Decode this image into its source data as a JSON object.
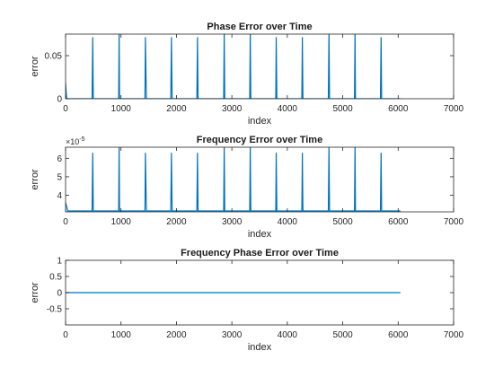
{
  "chart_data": [
    {
      "type": "line",
      "title": "Phase Error over Time",
      "xlabel": "index",
      "ylabel": "error",
      "xlim": [
        0,
        7000
      ],
      "ylim": [
        0,
        0.075
      ],
      "xticks": [
        0,
        1000,
        2000,
        3000,
        4000,
        5000,
        6000,
        7000
      ],
      "xtick_labels": [
        "0",
        "1000",
        "2000",
        "3000",
        "4000",
        "5000",
        "6000",
        "7000"
      ],
      "yticks": [
        0,
        0.05
      ],
      "ytick_labels": [
        "0",
        "0.05"
      ],
      "exponent_label": "",
      "line_color": "#0072bd",
      "series": [
        {
          "x": [
            0,
            20,
            460,
            478,
            490,
            500,
            520,
            940,
            958,
            966,
            974,
            990,
            1410,
            1432,
            1440,
            1458,
            1470,
            1880,
            1898,
            1910,
            1922,
            1940,
            2350,
            2368,
            2380,
            2390,
            2410,
            2830,
            2852,
            2862,
            2872,
            2890,
            3300,
            3322,
            3332,
            3342,
            3360,
            3770,
            3792,
            3800,
            3812,
            3830,
            4240,
            4262,
            4272,
            4282,
            4300,
            4720,
            4740,
            4752,
            4762,
            4780,
            5190,
            5212,
            5222,
            5230,
            5250,
            5660,
            5680,
            5692,
            5702,
            5720,
            6040
          ],
          "y": [
            0.018,
            0,
            0,
            0,
            0.0715,
            0,
            0,
            0,
            0,
            0.078,
            0,
            0,
            0,
            0,
            0.0715,
            0,
            0,
            0,
            0,
            0.0715,
            0,
            0,
            0,
            0,
            0.0715,
            0,
            0,
            0,
            0,
            0.078,
            0,
            0,
            0,
            0,
            0.078,
            0,
            0,
            0,
            0,
            0.0715,
            0,
            0,
            0,
            0,
            0.0715,
            0,
            0,
            0,
            0,
            0.078,
            0,
            0,
            0,
            0,
            0.078,
            0,
            0,
            0,
            0,
            0.0715,
            0,
            0,
            0
          ]
        }
      ]
    },
    {
      "type": "line",
      "title": "Frequency Error over Time",
      "xlabel": "index",
      "ylabel": "error",
      "xlim": [
        0,
        7000
      ],
      "ylim": [
        3.1,
        6.6
      ],
      "xticks": [
        0,
        1000,
        2000,
        3000,
        4000,
        5000,
        6000,
        7000
      ],
      "xtick_labels": [
        "0",
        "1000",
        "2000",
        "3000",
        "4000",
        "5000",
        "6000",
        "7000"
      ],
      "yticks": [
        4,
        5,
        6
      ],
      "ytick_labels": [
        "4",
        "5",
        "6"
      ],
      "exponent_label": "×10",
      "exponent_power": "-5",
      "line_color": "#0072bd",
      "series": [
        {
          "x": [
            0,
            40,
            460,
            478,
            490,
            500,
            520,
            940,
            958,
            966,
            974,
            990,
            1410,
            1432,
            1440,
            1458,
            1470,
            1880,
            1898,
            1910,
            1922,
            1940,
            2350,
            2368,
            2380,
            2390,
            2410,
            2830,
            2852,
            2862,
            2872,
            2890,
            3300,
            3322,
            3332,
            3342,
            3360,
            3770,
            3792,
            3800,
            3812,
            3830,
            4240,
            4262,
            4272,
            4282,
            4300,
            4720,
            4740,
            4752,
            4762,
            4780,
            5190,
            5212,
            5222,
            5230,
            5250,
            5660,
            5680,
            5692,
            5702,
            5720,
            6040
          ],
          "y": [
            3.6,
            3.15,
            3.15,
            3.15,
            6.3,
            3.15,
            3.15,
            3.15,
            3.15,
            6.7,
            3.15,
            3.15,
            3.15,
            3.15,
            6.3,
            3.15,
            3.15,
            3.15,
            3.15,
            6.3,
            3.15,
            3.15,
            3.15,
            3.15,
            6.3,
            3.15,
            3.15,
            3.15,
            3.15,
            6.7,
            3.15,
            3.15,
            3.15,
            3.15,
            6.7,
            3.15,
            3.15,
            3.15,
            3.15,
            6.3,
            3.15,
            3.15,
            3.15,
            3.15,
            6.3,
            3.15,
            3.15,
            3.15,
            3.15,
            6.7,
            3.15,
            3.15,
            3.15,
            3.15,
            6.7,
            3.15,
            3.15,
            3.15,
            3.15,
            6.3,
            3.15,
            3.15,
            3.15
          ]
        }
      ]
    },
    {
      "type": "line",
      "title": "Frequency Phase Error over Time",
      "xlabel": "index",
      "ylabel": "error",
      "xlim": [
        0,
        7000
      ],
      "ylim": [
        -1,
        1
      ],
      "xticks": [
        0,
        1000,
        2000,
        3000,
        4000,
        5000,
        6000,
        7000
      ],
      "xtick_labels": [
        "0",
        "1000",
        "2000",
        "3000",
        "4000",
        "5000",
        "6000",
        "7000"
      ],
      "yticks": [
        -0.5,
        0,
        0.5,
        1
      ],
      "ytick_labels": [
        "-0.5",
        "0",
        "0.5",
        "1"
      ],
      "exponent_label": "",
      "line_color": "#0072bd",
      "series": [
        {
          "x": [
            0,
            6040
          ],
          "y": [
            0,
            0
          ]
        }
      ]
    }
  ]
}
